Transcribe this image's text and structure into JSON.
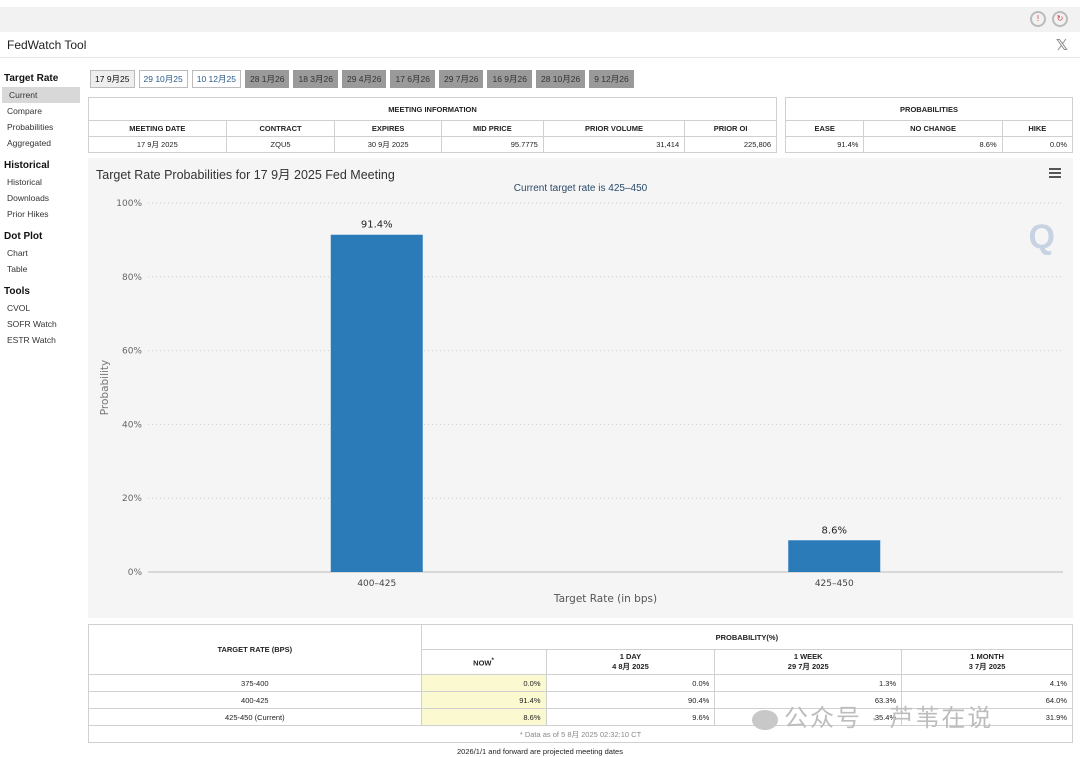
{
  "app": {
    "title": "FedWatch Tool"
  },
  "sidebar": [
    {
      "section": "Target Rate",
      "items": [
        {
          "label": "Current",
          "active": true
        },
        {
          "label": "Compare"
        },
        {
          "label": "Probabilities"
        },
        {
          "label": "Aggregated"
        }
      ]
    },
    {
      "section": "Historical",
      "items": [
        {
          "label": "Historical"
        },
        {
          "label": "Downloads"
        },
        {
          "label": "Prior Hikes"
        }
      ]
    },
    {
      "section": "Dot Plot",
      "items": [
        {
          "label": "Chart"
        },
        {
          "label": "Table"
        }
      ]
    },
    {
      "section": "Tools",
      "items": [
        {
          "label": "CVOL"
        },
        {
          "label": "SOFR Watch"
        },
        {
          "label": "ESTR Watch"
        }
      ]
    }
  ],
  "tabs": [
    {
      "label": "17 9月25",
      "style": "sel"
    },
    {
      "label": "29 10月25",
      "style": "light"
    },
    {
      "label": "10 12月25",
      "style": "light"
    },
    {
      "label": "28 1月26",
      "style": "dark"
    },
    {
      "label": "18 3月26",
      "style": "dark"
    },
    {
      "label": "29 4月26",
      "style": "dark"
    },
    {
      "label": "17 6月26",
      "style": "dark"
    },
    {
      "label": "29 7月26",
      "style": "dark"
    },
    {
      "label": "16 9月26",
      "style": "dark"
    },
    {
      "label": "28 10月26",
      "style": "dark"
    },
    {
      "label": "9 12月26",
      "style": "dark"
    }
  ],
  "meeting_info": {
    "header": "MEETING INFORMATION",
    "columns": [
      "MEETING DATE",
      "CONTRACT",
      "EXPIRES",
      "MID PRICE",
      "PRIOR VOLUME",
      "PRIOR OI"
    ],
    "row": [
      "17 9月 2025",
      "ZQU5",
      "30 9月 2025",
      "95.7775",
      "31,414",
      "225,806"
    ]
  },
  "probabilities": {
    "header": "PROBABILITIES",
    "columns": [
      "EASE",
      "NO CHANGE",
      "HIKE"
    ],
    "row": [
      "91.4%",
      "8.6%",
      "0.0%"
    ]
  },
  "chart": {
    "title": "Target Rate Probabilities for 17 9月 2025 Fed Meeting",
    "subtitle": "Current target rate is 425–450",
    "logo": "Q"
  },
  "chart_data": {
    "type": "bar",
    "title": "Target Rate Probabilities for 17 9月 2025 Fed Meeting",
    "subtitle": "Current target rate is 425–450",
    "categories": [
      "400–425",
      "425–450"
    ],
    "values": [
      91.4,
      8.6
    ],
    "data_labels": [
      "91.4%",
      "8.6%"
    ],
    "xlabel": "Target Rate (in bps)",
    "ylabel": "Probability",
    "ylim": [
      0,
      100
    ],
    "yticks": [
      "0%",
      "20%",
      "40%",
      "60%",
      "80%",
      "100%"
    ],
    "grid": true,
    "bar_color": "#2b7bb9"
  },
  "bottom_table": {
    "target_header": "TARGET RATE (BPS)",
    "prob_header": "PROBABILITY(%)",
    "columns": [
      {
        "label": "NOW",
        "mark": "*",
        "date": ""
      },
      {
        "label": "1 DAY",
        "date": "4 8月 2025"
      },
      {
        "label": "1 WEEK",
        "date": "29 7月 2025"
      },
      {
        "label": "1 MONTH",
        "date": "3 7月 2025"
      }
    ],
    "rows": [
      {
        "rate": "375-400",
        "values": [
          "0.0%",
          "0.0%",
          "1.3%",
          "4.1%"
        ]
      },
      {
        "rate": "400-425",
        "values": [
          "91.4%",
          "90.4%",
          "63.3%",
          "64.0%"
        ]
      },
      {
        "rate": "425-450 (Current)",
        "values": [
          "8.6%",
          "9.6%",
          "35.4%",
          "31.9%"
        ]
      }
    ],
    "note": "* Data as of 5 8月 2025 02:32:10 CT"
  },
  "footer": "2026/1/1 and forward are projected meeting dates",
  "watermark": {
    "text": "公众号 · 芦苇在说"
  }
}
